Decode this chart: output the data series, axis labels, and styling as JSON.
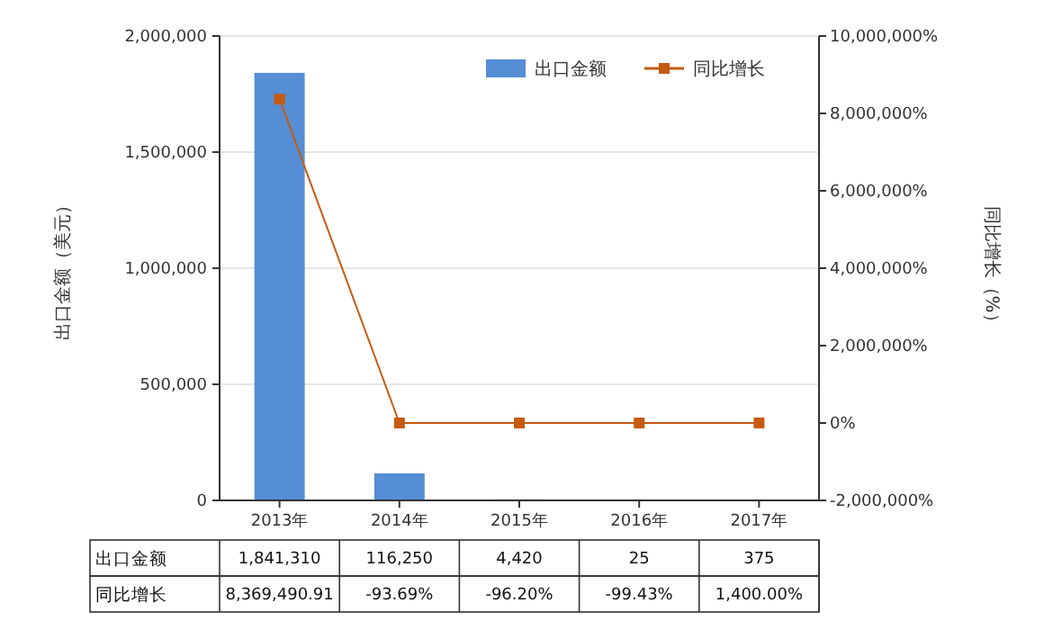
{
  "chart_data": {
    "type": "bar",
    "categories": [
      "2013年",
      "2014年",
      "2015年",
      "2016年",
      "2017年"
    ],
    "ylabel": "出口金额（美元）",
    "y2label": "同比增长（%）",
    "ylim": [
      0,
      2000000
    ],
    "yticks": [
      {
        "value": 0,
        "label": "0"
      },
      {
        "value": 500000,
        "label": "500,000"
      },
      {
        "value": 1000000,
        "label": "1,000,000"
      },
      {
        "value": 1500000,
        "label": "1,500,000"
      },
      {
        "value": 2000000,
        "label": "2,000,000"
      }
    ],
    "y2lim": [
      -2000000,
      10000000
    ],
    "y2ticks": [
      {
        "value": -2000000,
        "label": "-2,000,000%"
      },
      {
        "value": 0,
        "label": "0%"
      },
      {
        "value": 2000000,
        "label": "2,000,000%"
      },
      {
        "value": 4000000,
        "label": "4,000,000%"
      },
      {
        "value": 6000000,
        "label": "6,000,000%"
      },
      {
        "value": 8000000,
        "label": "8,000,000%"
      },
      {
        "value": 10000000,
        "label": "10,000,000%"
      }
    ],
    "grid": "y",
    "legend": "top right",
    "series": [
      {
        "name": "出口金额",
        "color": "#558ed5",
        "values": [
          1841310,
          116250,
          4420,
          25,
          375
        ],
        "value_labels": [
          "1,841,310",
          "116,250",
          "4,420",
          "25",
          "375"
        ]
      },
      {
        "name": "同比增长",
        "type": "line",
        "axis": "y2",
        "color": "#c55a11",
        "marker": "square",
        "values": [
          8369490.91,
          -93.69,
          -96.2,
          -99.43,
          1400
        ],
        "value_labels": [
          "8,369,490.91",
          "-93.69%",
          "-96.20%",
          "-99.43%",
          "1,400.00%"
        ]
      }
    ]
  }
}
